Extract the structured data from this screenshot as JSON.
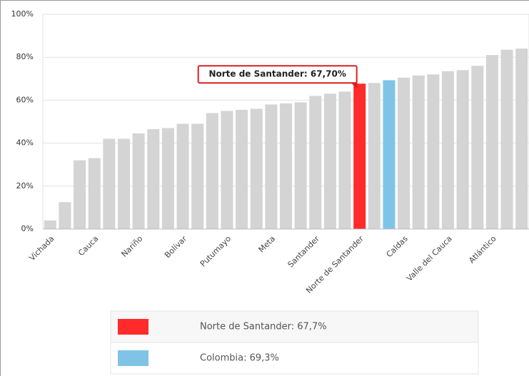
{
  "chart_data": {
    "type": "bar",
    "categories": [
      "Vichada",
      null,
      null,
      "Cauca",
      null,
      null,
      "Nariño",
      null,
      null,
      "Bolívar",
      null,
      null,
      "Putumayo",
      null,
      null,
      "Meta",
      null,
      null,
      "Santander",
      null,
      null,
      "Norte de Santander",
      null,
      null,
      "Caldas",
      null,
      null,
      "Valle del Cauca",
      null,
      null,
      "Atlántico",
      null,
      null
    ],
    "values": [
      4,
      12.5,
      32,
      33,
      42,
      42,
      44.5,
      46.5,
      47,
      49,
      49,
      54,
      55,
      55.5,
      56,
      58,
      58.5,
      59,
      62,
      63,
      64,
      67.7,
      68,
      69.3,
      70.5,
      71.5,
      72,
      73.5,
      74,
      76,
      81,
      83.5,
      84
    ],
    "colors": [
      "#d4d4d4",
      "#d4d4d4",
      "#d4d4d4",
      "#d4d4d4",
      "#d4d4d4",
      "#d4d4d4",
      "#d4d4d4",
      "#d4d4d4",
      "#d4d4d4",
      "#d4d4d4",
      "#d4d4d4",
      "#d4d4d4",
      "#d4d4d4",
      "#d4d4d4",
      "#d4d4d4",
      "#d4d4d4",
      "#d4d4d4",
      "#d4d4d4",
      "#d4d4d4",
      "#d4d4d4",
      "#d4d4d4",
      "#ff2a2a",
      "#d4d4d4",
      "#7fc4e6",
      "#d4d4d4",
      "#d4d4d4",
      "#d4d4d4",
      "#d4d4d4",
      "#d4d4d4",
      "#d4d4d4",
      "#d4d4d4",
      "#d4d4d4",
      "#d4d4d4"
    ],
    "ylim": [
      0,
      100
    ],
    "yticks": [
      {
        "value": 0,
        "label": "0%"
      },
      {
        "value": 20,
        "label": "20%"
      },
      {
        "value": 40,
        "label": "40%"
      },
      {
        "value": 60,
        "label": "60%"
      },
      {
        "value": 80,
        "label": "80%"
      },
      {
        "value": 100,
        "label": "100%"
      }
    ],
    "grid": true,
    "annotation": "Norte de Santander: 67,70%",
    "legend": [
      {
        "label": "Norte de Santander: 67,7%",
        "color": "#ff2a2a"
      },
      {
        "label": "Colombia: 69,3%",
        "color": "#7fc4e6"
      }
    ]
  }
}
